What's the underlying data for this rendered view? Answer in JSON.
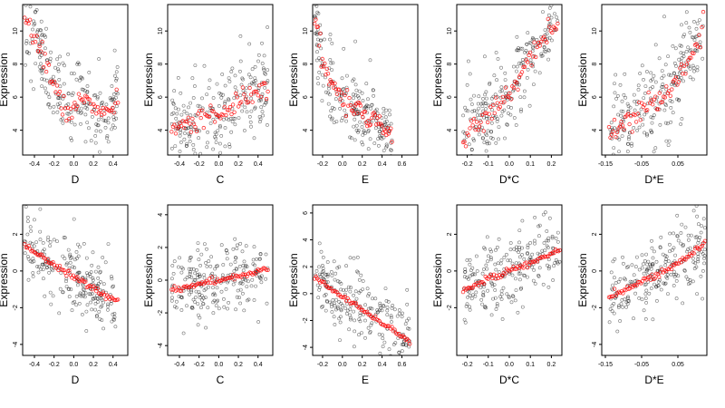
{
  "colors": {
    "observed": "#000000",
    "fitted": "#ff0000",
    "background": "#ffffff"
  },
  "chart_data": [
    {
      "type": "scatter",
      "row": 1,
      "xlabel": "D",
      "ylabel": "Expression",
      "xticks": [
        "-0.4",
        "-0.2",
        "0.0",
        "0.2",
        "0.4"
      ],
      "yticks": [
        "4",
        "6",
        "8",
        "10"
      ],
      "xlim": [
        -0.52,
        0.55
      ],
      "ylim": [
        2.5,
        11.6
      ],
      "fitted": [
        [
          -0.5,
          10.3
        ],
        [
          -0.45,
          9.9
        ],
        [
          -0.38,
          9.5
        ],
        [
          -0.32,
          8.7
        ],
        [
          -0.25,
          7.6
        ],
        [
          -0.2,
          6.7
        ],
        [
          -0.15,
          5.9
        ],
        [
          -0.1,
          5.4
        ],
        [
          -0.05,
          5.1
        ],
        [
          0.0,
          5.2
        ],
        [
          0.05,
          5.6
        ],
        [
          0.1,
          5.9
        ],
        [
          0.15,
          6.0
        ],
        [
          0.2,
          5.6
        ],
        [
          0.25,
          5.0
        ],
        [
          0.3,
          4.9
        ],
        [
          0.38,
          5.2
        ],
        [
          0.45,
          5.6
        ]
      ]
    },
    {
      "type": "scatter",
      "row": 1,
      "xlabel": "C",
      "ylabel": "Expression",
      "xticks": [
        "-0.4",
        "-0.2",
        "0.0",
        "0.2",
        "0.4"
      ],
      "yticks": [
        "4",
        "6",
        "8",
        "10"
      ],
      "xlim": [
        -0.52,
        0.55
      ],
      "ylim": [
        2.5,
        11.6
      ],
      "fitted": [
        [
          -0.48,
          4.0
        ],
        [
          -0.42,
          4.1
        ],
        [
          -0.35,
          4.3
        ],
        [
          -0.28,
          4.4
        ],
        [
          -0.22,
          4.5
        ],
        [
          -0.15,
          4.6
        ],
        [
          -0.08,
          4.8
        ],
        [
          0.0,
          5.1
        ],
        [
          0.08,
          5.4
        ],
        [
          0.15,
          5.7
        ],
        [
          0.22,
          5.9
        ],
        [
          0.3,
          6.1
        ],
        [
          0.38,
          6.3
        ],
        [
          0.45,
          6.4
        ],
        [
          0.5,
          6.5
        ]
      ]
    },
    {
      "type": "scatter",
      "row": 1,
      "xlabel": "E",
      "ylabel": "Expression",
      "xticks": [
        "-0.2",
        "0.0",
        "0.2",
        "0.4",
        "0.6"
      ],
      "yticks": [
        "4",
        "6",
        "8",
        "10"
      ],
      "xlim": [
        -0.3,
        0.76
      ],
      "ylim": [
        2.5,
        11.6
      ],
      "fitted": [
        [
          -0.28,
          11.0
        ],
        [
          -0.26,
          10.2
        ],
        [
          -0.23,
          9.3
        ],
        [
          -0.2,
          8.4
        ],
        [
          -0.15,
          7.5
        ],
        [
          -0.1,
          6.8
        ],
        [
          -0.05,
          6.4
        ],
        [
          0.0,
          6.0
        ],
        [
          0.05,
          5.7
        ],
        [
          0.1,
          5.5
        ],
        [
          0.15,
          5.3
        ],
        [
          0.2,
          5.1
        ],
        [
          0.25,
          4.9
        ],
        [
          0.3,
          4.7
        ],
        [
          0.35,
          4.5
        ],
        [
          0.42,
          4.2
        ],
        [
          0.48,
          3.8
        ],
        [
          0.5,
          3.6
        ]
      ]
    },
    {
      "type": "scatter",
      "row": 1,
      "xlabel": "D*C",
      "ylabel": "Expression",
      "xticks": [
        "-0.2",
        "-0.1",
        "0.0",
        "0.1",
        "0.2"
      ],
      "yticks": [
        "4",
        "6",
        "8",
        "10"
      ],
      "xlim": [
        -0.25,
        0.25
      ],
      "ylim": [
        2.5,
        11.6
      ],
      "fitted": [
        [
          -0.22,
          3.6
        ],
        [
          -0.17,
          4.2
        ],
        [
          -0.12,
          4.7
        ],
        [
          -0.08,
          5.1
        ],
        [
          -0.05,
          5.4
        ],
        [
          -0.02,
          5.8
        ],
        [
          0.0,
          6.1
        ],
        [
          0.02,
          6.6
        ],
        [
          0.05,
          7.3
        ],
        [
          0.08,
          8.1
        ],
        [
          0.12,
          8.9
        ],
        [
          0.16,
          9.6
        ],
        [
          0.2,
          10.1
        ],
        [
          0.23,
          10.4
        ]
      ]
    },
    {
      "type": "scatter",
      "row": 1,
      "xlabel": "D*E",
      "ylabel": "Expression",
      "xticks": [
        "-0.15",
        "-0.05",
        "0.05"
      ],
      "yticks": [
        "4",
        "6",
        "8",
        "10"
      ],
      "xlim": [
        -0.16,
        0.13
      ],
      "ylim": [
        2.5,
        11.6
      ],
      "fitted": [
        [
          -0.14,
          3.9
        ],
        [
          -0.11,
          4.3
        ],
        [
          -0.08,
          4.7
        ],
        [
          -0.05,
          5.2
        ],
        [
          -0.02,
          5.6
        ],
        [
          0.0,
          5.7
        ],
        [
          0.02,
          6.0
        ],
        [
          0.04,
          6.6
        ],
        [
          0.06,
          7.5
        ],
        [
          0.08,
          8.4
        ],
        [
          0.1,
          9.2
        ],
        [
          0.11,
          9.8
        ],
        [
          0.12,
          10.3
        ]
      ]
    },
    {
      "type": "scatter",
      "row": 2,
      "xlabel": "D",
      "ylabel": "Expression",
      "xticks": [
        "-0.4",
        "-0.2",
        "0.0",
        "0.2",
        "0.4"
      ],
      "yticks": [
        "-4",
        "-2",
        "0",
        "2"
      ],
      "xlim": [
        -0.52,
        0.55
      ],
      "ylim": [
        -4.6,
        3.6
      ],
      "fitted": [
        [
          -0.5,
          1.35
        ],
        [
          -0.45,
          1.2
        ],
        [
          -0.4,
          1.0
        ],
        [
          -0.35,
          0.85
        ],
        [
          -0.3,
          0.65
        ],
        [
          -0.25,
          0.5
        ],
        [
          -0.2,
          0.3
        ],
        [
          -0.15,
          0.15
        ],
        [
          -0.1,
          -0.05
        ],
        [
          -0.05,
          -0.2
        ],
        [
          0.0,
          -0.35
        ],
        [
          0.05,
          -0.5
        ],
        [
          0.1,
          -0.65
        ],
        [
          0.15,
          -0.8
        ],
        [
          0.2,
          -0.95
        ],
        [
          0.25,
          -1.1
        ],
        [
          0.3,
          -1.25
        ],
        [
          0.35,
          -1.4
        ],
        [
          0.4,
          -1.5
        ],
        [
          0.45,
          -1.6
        ]
      ]
    },
    {
      "type": "scatter",
      "row": 2,
      "xlabel": "C",
      "ylabel": "Expression",
      "xticks": [
        "-0.4",
        "-0.2",
        "0.0",
        "0.2",
        "0.4"
      ],
      "yticks": [
        "-4",
        "-2",
        "0",
        "2",
        "4"
      ],
      "xlim": [
        -0.52,
        0.55
      ],
      "ylim": [
        -4.6,
        4.6
      ],
      "fitted": [
        [
          -0.48,
          -0.6
        ],
        [
          -0.42,
          -0.55
        ],
        [
          -0.35,
          -0.45
        ],
        [
          -0.28,
          -0.35
        ],
        [
          -0.2,
          -0.25
        ],
        [
          -0.12,
          -0.15
        ],
        [
          -0.05,
          -0.05
        ],
        [
          0.0,
          0.0
        ],
        [
          0.08,
          0.1
        ],
        [
          0.15,
          0.2
        ],
        [
          0.22,
          0.3
        ],
        [
          0.3,
          0.4
        ],
        [
          0.38,
          0.5
        ],
        [
          0.45,
          0.6
        ],
        [
          0.5,
          0.65
        ]
      ]
    },
    {
      "type": "scatter",
      "row": 2,
      "xlabel": "E",
      "ylabel": "Expression",
      "xticks": [
        "-0.2",
        "0.0",
        "0.2",
        "0.4",
        "0.6"
      ],
      "yticks": [
        "-4",
        "-2",
        "0",
        "2",
        "4",
        "6"
      ],
      "xlim": [
        -0.3,
        0.76
      ],
      "ylim": [
        -4.6,
        6.6
      ],
      "fitted": [
        [
          -0.28,
          1.2
        ],
        [
          -0.24,
          1.0
        ],
        [
          -0.2,
          0.8
        ],
        [
          -0.15,
          0.55
        ],
        [
          -0.1,
          0.3
        ],
        [
          -0.05,
          0.05
        ],
        [
          0.0,
          -0.2
        ],
        [
          0.05,
          -0.45
        ],
        [
          0.1,
          -0.7
        ],
        [
          0.15,
          -0.95
        ],
        [
          0.2,
          -1.2
        ],
        [
          0.25,
          -1.45
        ],
        [
          0.3,
          -1.7
        ],
        [
          0.35,
          -1.95
        ],
        [
          0.4,
          -2.2
        ],
        [
          0.45,
          -2.45
        ],
        [
          0.5,
          -2.7
        ],
        [
          0.55,
          -2.95
        ],
        [
          0.62,
          -3.3
        ],
        [
          0.68,
          -3.6
        ]
      ]
    },
    {
      "type": "scatter",
      "row": 2,
      "xlabel": "D*C",
      "ylabel": "Expression",
      "xticks": [
        "-0.2",
        "-0.1",
        "0.0",
        "0.1",
        "0.2"
      ],
      "yticks": [
        "-2",
        "0",
        "2"
      ],
      "xlim": [
        -0.25,
        0.25
      ],
      "ylim": [
        -4.6,
        3.6
      ],
      "fitted": [
        [
          -0.22,
          -1.05
        ],
        [
          -0.18,
          -0.85
        ],
        [
          -0.14,
          -0.65
        ],
        [
          -0.1,
          -0.48
        ],
        [
          -0.06,
          -0.3
        ],
        [
          -0.02,
          -0.1
        ],
        [
          0.0,
          0.0
        ],
        [
          0.02,
          0.1
        ],
        [
          0.06,
          0.3
        ],
        [
          0.1,
          0.5
        ],
        [
          0.14,
          0.68
        ],
        [
          0.18,
          0.88
        ],
        [
          0.22,
          1.05
        ],
        [
          0.24,
          1.15
        ]
      ]
    },
    {
      "type": "scatter",
      "row": 2,
      "xlabel": "D*E",
      "ylabel": "Expression",
      "xticks": [
        "-0.15",
        "-0.05",
        "0.05"
      ],
      "yticks": [
        "-4",
        "-2",
        "0",
        "2"
      ],
      "xlim": [
        -0.16,
        0.13
      ],
      "ylim": [
        -4.6,
        3.6
      ],
      "fitted": [
        [
          -0.14,
          -1.45
        ],
        [
          -0.11,
          -1.15
        ],
        [
          -0.08,
          -0.85
        ],
        [
          -0.05,
          -0.6
        ],
        [
          -0.02,
          -0.35
        ],
        [
          0.0,
          -0.15
        ],
        [
          0.02,
          0.05
        ],
        [
          0.04,
          0.3
        ],
        [
          0.06,
          0.55
        ],
        [
          0.08,
          0.85
        ],
        [
          0.1,
          1.15
        ],
        [
          0.12,
          1.45
        ],
        [
          0.125,
          1.6
        ]
      ]
    }
  ]
}
